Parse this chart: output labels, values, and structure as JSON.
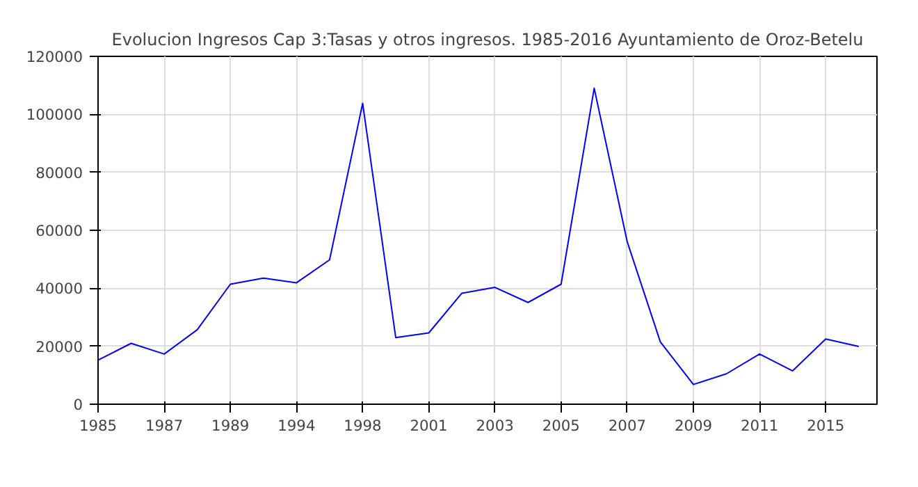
{
  "chart_data": {
    "type": "line",
    "title": "Evolucion Ingresos Cap 3:Tasas y otros ingresos. 1985-2016 Ayuntamiento de Oroz-Betelu",
    "categories": [
      "1985",
      null,
      "1987",
      null,
      "1989",
      null,
      "1994",
      null,
      "1998",
      null,
      "2001",
      null,
      "2003",
      null,
      "2005",
      null,
      "2007",
      null,
      "2009",
      null,
      "2011",
      null,
      "2015",
      null
    ],
    "series": [
      {
        "color": "#0000ff",
        "values": [
          15200,
          21000,
          17300,
          25700,
          41400,
          43500,
          41900,
          49800,
          103800,
          23000,
          24600,
          38300,
          40300,
          35100,
          41400,
          109000,
          56000,
          21500,
          6800,
          10500,
          17300,
          11500,
          22500,
          19900
        ]
      }
    ],
    "ylim": [
      0,
      120000
    ],
    "yticks": [
      0,
      20000,
      40000,
      60000,
      80000,
      100000,
      120000
    ],
    "grid": true
  }
}
